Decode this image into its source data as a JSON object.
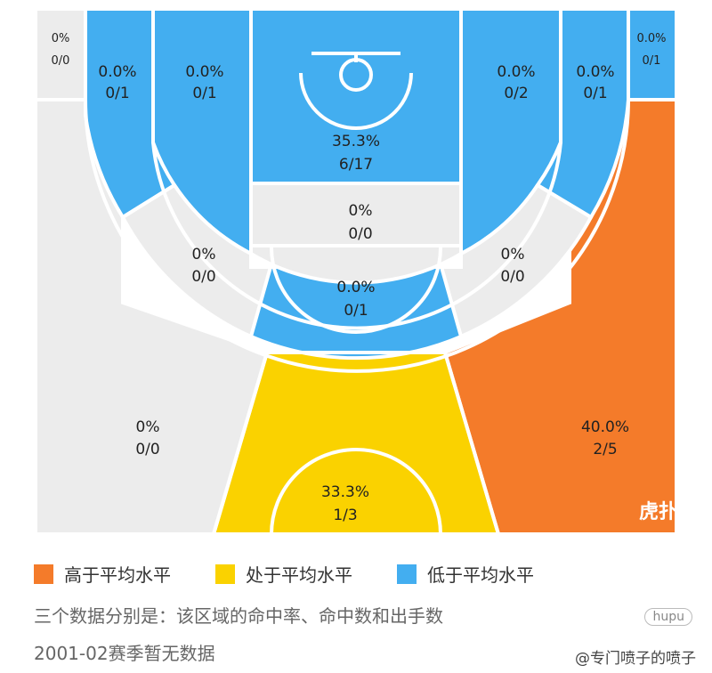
{
  "chart_data": {
    "type": "heatmap",
    "zones": [
      {
        "id": "left-corner-three",
        "pct": "0%",
        "made_att": "0/0",
        "level": "none"
      },
      {
        "id": "left-wing-three",
        "pct": "0.0%",
        "made_att": "0/1",
        "level": "below"
      },
      {
        "id": "left-elbow-three",
        "pct": "0.0%",
        "made_att": "0/1",
        "level": "below"
      },
      {
        "id": "top-key-three",
        "pct": "0.0%",
        "made_att": "0/1",
        "level": "below"
      },
      {
        "id": "right-elbow-three",
        "pct": "0.0%",
        "made_att": "0/2",
        "level": "below"
      },
      {
        "id": "right-wing-three",
        "pct": "0.0%",
        "made_att": "0/1",
        "level": "below"
      },
      {
        "id": "right-corner-three",
        "pct": "0.0%",
        "made_att": "0/1",
        "level": "below"
      },
      {
        "id": "paint",
        "pct": "35.3%",
        "made_att": "6/17",
        "level": "below"
      },
      {
        "id": "free-throw-midrange",
        "pct": "0%",
        "made_att": "0/0",
        "level": "none"
      },
      {
        "id": "left-midrange",
        "pct": "0%",
        "made_att": "0/0",
        "level": "none"
      },
      {
        "id": "right-midrange",
        "pct": "0%",
        "made_att": "0/0",
        "level": "none"
      },
      {
        "id": "left-backcourt",
        "pct": "0%",
        "made_att": "0/0",
        "level": "none"
      },
      {
        "id": "center-backcourt",
        "pct": "33.3%",
        "made_att": "1/3",
        "level": "average"
      },
      {
        "id": "right-backcourt",
        "pct": "40.0%",
        "made_att": "2/5",
        "level": "above"
      }
    ]
  },
  "colors": {
    "above": "#f47b2a",
    "average": "#fad200",
    "below": "#43aef0",
    "none": "#ececec",
    "line": "#ffffff"
  },
  "legend": [
    {
      "label": "高于平均水平",
      "color": "#f47b2a"
    },
    {
      "label": "处于平均水平",
      "color": "#fad200"
    },
    {
      "label": "低于平均水平",
      "color": "#43aef0"
    }
  ],
  "notes": {
    "line1": "三个数据分别是：该区域的命中率、命中数和出手数",
    "line2": "2001-02赛季暂无数据"
  },
  "watermark": {
    "text": "@专门喷子的喷子",
    "logo": "虎扑"
  }
}
